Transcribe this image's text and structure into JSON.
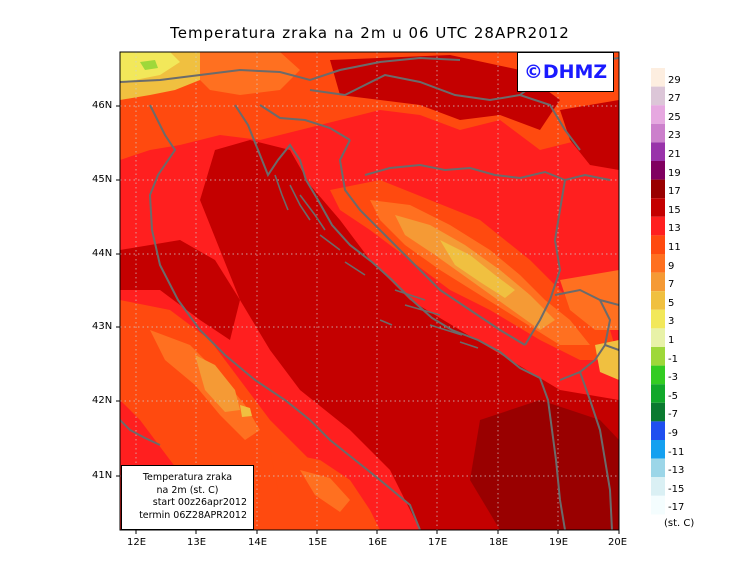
{
  "title": "Temperatura zraka na 2m u 06 UTC 28APR2012",
  "copyright": "©DHMZ",
  "infobox": {
    "line1": "Temperatura zraka",
    "line2": "na 2m (st. C)",
    "line3": "start 00z26apr2012",
    "line4": "termin 06Z28APR2012"
  },
  "lat_labels": [
    "46N",
    "45N",
    "44N",
    "43N",
    "42N",
    "41N"
  ],
  "lon_labels": [
    "12E",
    "13E",
    "14E",
    "15E",
    "16E",
    "17E",
    "18E",
    "19E",
    "20E"
  ],
  "legend": {
    "unit": "(st. C)",
    "labels": [
      "29",
      "27",
      "25",
      "23",
      "21",
      "19",
      "17",
      "15",
      "13",
      "11",
      "9",
      "7",
      "5",
      "3",
      "1",
      "-1",
      "-3",
      "-5",
      "-7",
      "-9",
      "-11",
      "-13",
      "-15",
      "-17"
    ],
    "colors": [
      "#fdeee0",
      "#dcc6d8",
      "#e6a8e0",
      "#cc80cc",
      "#9933aa",
      "#800060",
      "#990000",
      "#c40000",
      "#ff1f1f",
      "#ff4a0f",
      "#ff7020",
      "#f59a35",
      "#f0c040",
      "#f2e85a",
      "#e8f2a8",
      "#9ed83a",
      "#33cc22",
      "#11a82a",
      "#0b7a30",
      "#1f4ff0",
      "#14a0f0",
      "#9cd6e8",
      "#daf0f4",
      "#f4fdfe"
    ]
  },
  "colors": {
    "land_border": "#6b6b6b",
    "sea_warm": "#cc0a0a",
    "base_field": "#ff2222",
    "copyright_text": "#1a1aff"
  }
}
